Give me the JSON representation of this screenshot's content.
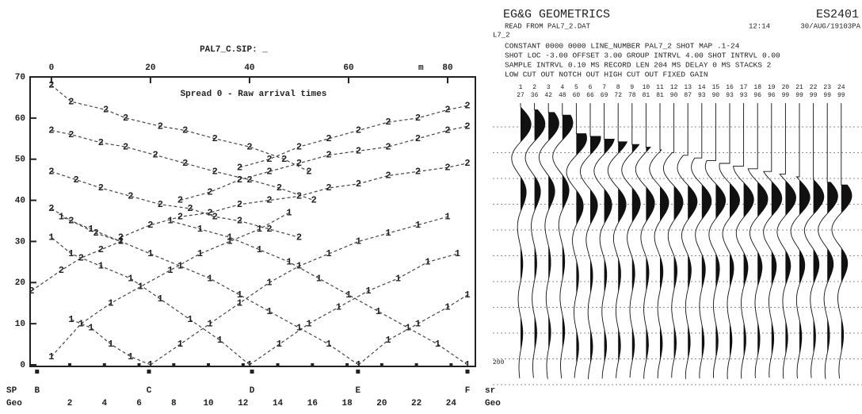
{
  "chart_data": {
    "type": "line",
    "title": "PAL7_C.SIP: _",
    "annotation": "Spread 0 - Raw arrival times",
    "x_unit": "m",
    "xlim": [
      -4.3,
      85.6
    ],
    "xticks": [
      0,
      20,
      40,
      60,
      80
    ],
    "ylim": [
      0,
      70
    ],
    "yticks": [
      0,
      10,
      20,
      30,
      40,
      50,
      60,
      70
    ],
    "color": "#444444",
    "series": [
      {
        "marker": "2",
        "x": [
          0,
          4,
          11,
          15,
          22,
          27,
          33,
          40,
          47,
          52
        ],
        "values": [
          68,
          64,
          62,
          60,
          58,
          57,
          55,
          53,
          50,
          47
        ]
      },
      {
        "marker": "2",
        "x": [
          38,
          44,
          50,
          56,
          62,
          68,
          74,
          80,
          84
        ],
        "values": [
          48,
          50,
          53,
          55,
          57,
          59,
          60,
          62,
          63
        ]
      },
      {
        "marker": "2",
        "x": [
          0,
          4,
          10,
          15,
          21,
          27,
          33,
          40,
          46,
          53
        ],
        "values": [
          57,
          56,
          54,
          53,
          51,
          49,
          47,
          45,
          43,
          40
        ]
      },
      {
        "marker": "2",
        "x": [
          26,
          32,
          38,
          44,
          50,
          56,
          62,
          68,
          74,
          80,
          84
        ],
        "values": [
          40,
          42,
          45,
          47,
          49,
          51,
          52,
          53,
          55,
          57,
          58
        ]
      },
      {
        "marker": "2",
        "x": [
          0,
          5,
          10,
          16,
          22,
          28,
          33,
          38,
          44,
          50
        ],
        "values": [
          47,
          45,
          43,
          41,
          39,
          38,
          36,
          35,
          33,
          31
        ]
      },
      {
        "marker": "2",
        "x": [
          14,
          20,
          26,
          32,
          38,
          44,
          50,
          56,
          62,
          68,
          74,
          80,
          84
        ],
        "values": [
          31,
          34,
          36,
          37,
          39,
          40,
          41,
          43,
          44,
          46,
          47,
          48,
          49
        ]
      },
      {
        "marker": "2",
        "x": [
          0,
          4,
          9,
          14
        ],
        "values": [
          38,
          35,
          32,
          30
        ]
      },
      {
        "marker": "2",
        "x": [
          -4,
          2,
          6,
          10,
          14
        ],
        "values": [
          18,
          23,
          26,
          28,
          30
        ]
      },
      {
        "marker": "1",
        "x": [
          0,
          6,
          12,
          18,
          24,
          30,
          36,
          42,
          48
        ],
        "values": [
          2,
          10,
          15,
          19,
          23,
          27,
          30,
          33,
          37
        ]
      },
      {
        "marker": "1",
        "x": [
          20,
          26,
          32,
          38,
          44,
          50,
          56,
          62,
          68,
          74,
          80
        ],
        "values": [
          0,
          5,
          10,
          15,
          20,
          24,
          27,
          30,
          32,
          34,
          36
        ]
      },
      {
        "marker": "1",
        "x": [
          40,
          46,
          52,
          58,
          64,
          70,
          76,
          82
        ],
        "values": [
          0,
          5,
          10,
          14,
          18,
          21,
          25,
          27
        ]
      },
      {
        "marker": "1",
        "x": [
          62,
          68,
          74,
          80,
          84
        ],
        "values": [
          0,
          6,
          10,
          14,
          17
        ]
      },
      {
        "marker": "1",
        "x": [
          20,
          16,
          12,
          8,
          4
        ],
        "values": [
          0,
          2,
          5,
          9,
          11
        ]
      },
      {
        "marker": "1",
        "x": [
          40,
          34,
          28,
          22,
          16,
          10,
          4,
          0
        ],
        "values": [
          0,
          6,
          11,
          16,
          21,
          24,
          27,
          31
        ]
      },
      {
        "marker": "1",
        "x": [
          62,
          56,
          50,
          44,
          38,
          32,
          26,
          20,
          14,
          8,
          2
        ],
        "values": [
          0,
          5,
          9,
          13,
          17,
          21,
          24,
          27,
          30,
          33,
          36
        ]
      },
      {
        "marker": "1",
        "x": [
          84,
          78,
          72,
          66,
          60,
          54,
          48,
          42,
          36,
          30,
          24
        ],
        "values": [
          0,
          5,
          9,
          13,
          17,
          21,
          25,
          28,
          31,
          33,
          35
        ]
      }
    ],
    "sp_row_label": "SP",
    "sp_row_unit": "sr",
    "shots": [
      {
        "label": "B",
        "x": -2.9
      },
      {
        "label": "C",
        "x": 19.7
      },
      {
        "label": "D",
        "x": 40.5
      },
      {
        "label": "E",
        "x": 61.9
      },
      {
        "label": "F",
        "x": 84
      }
    ],
    "geo_row_label": "Geo",
    "geo_row_unit": "Geo",
    "geo_ticks": [
      {
        "value": 3.7,
        "label": "2"
      },
      {
        "value": 10.7,
        "label": "4"
      },
      {
        "value": 17.7,
        "label": "6"
      },
      {
        "value": 24.7,
        "label": "8"
      },
      {
        "value": 31.7,
        "label": "10"
      },
      {
        "value": 38.7,
        "label": "12"
      },
      {
        "value": 45.7,
        "label": "14"
      },
      {
        "value": 52.7,
        "label": "16"
      },
      {
        "value": 59.7,
        "label": "18"
      },
      {
        "value": 66.7,
        "label": "20"
      },
      {
        "value": 73.7,
        "label": "22"
      },
      {
        "value": 80.7,
        "label": "24"
      }
    ]
  },
  "record": {
    "brand": "EG&G GEOMETRICS",
    "model": "ES2401",
    "source": "READ FROM PAL7_2.DAT",
    "time": "12:14",
    "date": "30/AUG/19103PA",
    "line": "L7_2",
    "header_lines": [
      "CONSTANT   0000 0000    LINE_NUMBER PAL7_2        SHOT MAP     .1-24",
      "SHOT LOC    -3.00   OFFSET  3.00  GROUP INTRVL   4.00  SHOT INTRVL  0.00",
      "SAMPLE INTRVL 0.10 MS    RECORD LEN  204 MS    DELAY    0 MS    STACKS   2",
      "LOW CUT OUT        NOTCH OUT       HIGH CUT OUT              FIXED GAIN"
    ],
    "channels": [
      "1",
      "2",
      "3",
      "4",
      "5",
      "6",
      "7",
      "8",
      "9",
      "10",
      "11",
      "12",
      "13",
      "14",
      "15",
      "16",
      "17",
      "18",
      "19",
      "20",
      "21",
      "22",
      "23",
      "24"
    ],
    "gains": [
      "27",
      "36",
      "42",
      "48",
      "60",
      "66",
      "69",
      "72",
      "78",
      "81",
      "81",
      "90",
      "87",
      "93",
      "90",
      "93",
      "93",
      "96",
      "96",
      "99",
      "99",
      "99",
      "99",
      "99"
    ],
    "time_label": "200"
  }
}
